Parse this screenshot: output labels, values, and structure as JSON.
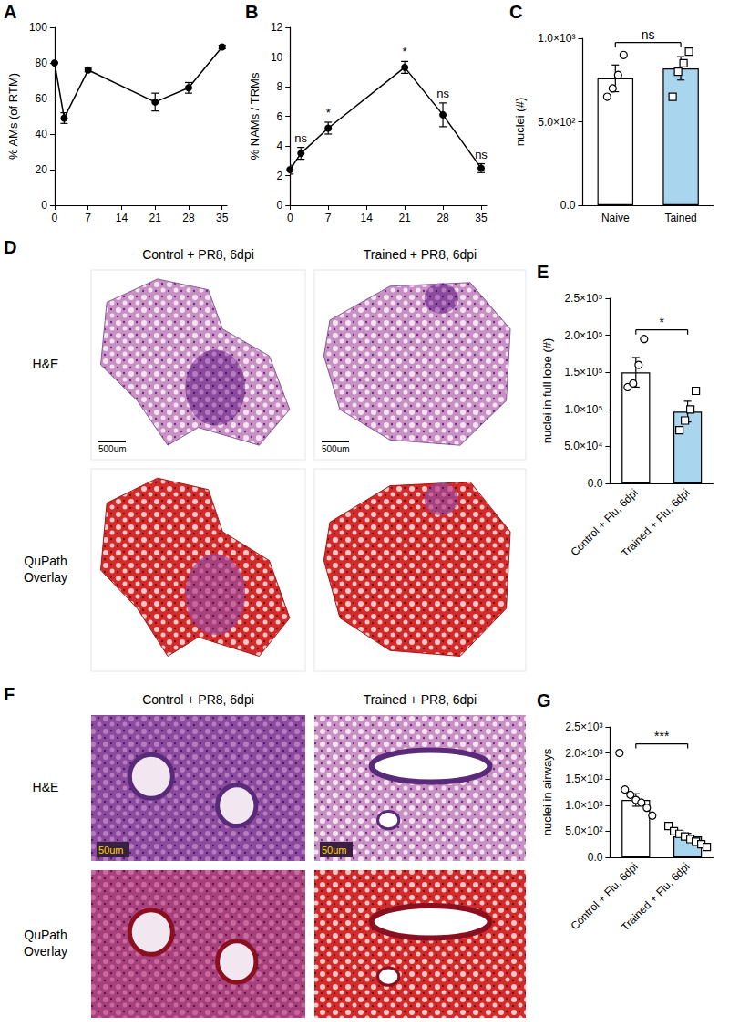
{
  "chart_data": [
    {
      "panel": "A",
      "type": "line",
      "ylabel": "% AMs (of RTM)",
      "x": [
        0,
        2,
        7,
        21,
        28,
        35
      ],
      "values": [
        80,
        49,
        76,
        58,
        66,
        89
      ],
      "errors": [
        0,
        3,
        1,
        5,
        3,
        1
      ],
      "xlim": [
        0,
        36
      ],
      "xticks": [
        0,
        7,
        14,
        21,
        28,
        35
      ],
      "ylim": [
        0,
        100
      ],
      "yticks": [
        0,
        20,
        40,
        60,
        80,
        100
      ],
      "color": "#000000",
      "marker": "circle"
    },
    {
      "panel": "B",
      "type": "line",
      "ylabel": "% NAMs / TRMs",
      "x": [
        0,
        2,
        7,
        21,
        28,
        35
      ],
      "values": [
        2.4,
        3.5,
        5.2,
        9.3,
        6.1,
        2.5
      ],
      "errors": [
        0.3,
        0.4,
        0.4,
        0.4,
        0.8,
        0.3
      ],
      "xlim": [
        0,
        36
      ],
      "xticks": [
        0,
        7,
        14,
        21,
        28,
        35
      ],
      "ylim": [
        0,
        12
      ],
      "yticks": [
        0,
        2,
        4,
        6,
        8,
        10,
        12
      ],
      "color": "#000000",
      "marker": "circle",
      "annotations": [
        {
          "x": 2,
          "text": "ns"
        },
        {
          "x": 7,
          "text": "*"
        },
        {
          "x": 21,
          "text": "*"
        },
        {
          "x": 28,
          "text": "ns"
        },
        {
          "x": 35,
          "text": "ns"
        }
      ]
    },
    {
      "panel": "C",
      "type": "bar",
      "ylabel": "nuclei (#)",
      "categories": [
        "Naive",
        "Tained"
      ],
      "values": [
        760,
        820
      ],
      "errors": [
        80,
        70
      ],
      "points": [
        [
          650,
          700,
          780,
          900
        ],
        [
          650,
          800,
          850,
          920
        ]
      ],
      "colors": [
        "#ffffff",
        "#a9d5ef"
      ],
      "ylim": [
        0,
        1000
      ],
      "yticks": [
        {
          "value": 0,
          "label": "0.0"
        },
        {
          "value": 500,
          "label": "5.0×10²"
        },
        {
          "value": 1000,
          "label": "1.0×10³"
        }
      ],
      "annotations": [
        {
          "between": [
            "Naive",
            "Tained"
          ],
          "text": "ns"
        }
      ]
    },
    {
      "panel": "E",
      "type": "bar",
      "ylabel": "nuclei in full lobe (#)",
      "categories": [
        "Control + Flu, 6dpi",
        "Trained + Flu, 6dpi"
      ],
      "values": [
        150000,
        97000
      ],
      "errors": [
        20000,
        14000
      ],
      "points": [
        [
          130000,
          135000,
          160000,
          195000
        ],
        [
          72000,
          85000,
          100000,
          125000
        ]
      ],
      "colors": [
        "#ffffff",
        "#a9d5ef"
      ],
      "ylim": [
        0,
        250000
      ],
      "yticks": [
        {
          "value": 0,
          "label": "0.0"
        },
        {
          "value": 50000,
          "label": "5.0×10⁴"
        },
        {
          "value": 100000,
          "label": "1.0×10⁵"
        },
        {
          "value": 150000,
          "label": "1.5×10⁵"
        },
        {
          "value": 200000,
          "label": "2.0×10⁵"
        },
        {
          "value": 250000,
          "label": "2.5×10⁵"
        }
      ],
      "annotations": [
        {
          "between": [
            "Control + Flu, 6dpi",
            "Trained + Flu, 6dpi"
          ],
          "text": "*"
        }
      ]
    },
    {
      "panel": "G",
      "type": "bar",
      "ylabel": "nuclei in airways",
      "categories": [
        "Control + Flu, 6dpi",
        "Trained + Flu, 6dpi"
      ],
      "values": [
        1100,
        400
      ],
      "errors": [
        120,
        60
      ],
      "points": [
        [
          2000,
          1300,
          1200,
          1100,
          1050,
          950,
          800
        ],
        [
          600,
          500,
          450,
          400,
          350,
          300,
          250,
          200
        ]
      ],
      "colors": [
        "#ffffff",
        "#a9d5ef"
      ],
      "ylim": [
        0,
        2500
      ],
      "yticks": [
        {
          "value": 0,
          "label": "0.0"
        },
        {
          "value": 500,
          "label": "5.0×10²"
        },
        {
          "value": 1000,
          "label": "1.0×10³"
        },
        {
          "value": 1500,
          "label": "1.5×10³"
        },
        {
          "value": 2000,
          "label": "2.0×10³"
        },
        {
          "value": 2500,
          "label": "2.5×10³"
        }
      ],
      "annotations": [
        {
          "between": [
            "Control + Flu, 6dpi",
            "Trained + Flu, 6dpi"
          ],
          "text": "***"
        }
      ]
    }
  ],
  "image_panels": [
    {
      "panel": "D",
      "columns": [
        "Control + PR8, 6dpi",
        "Trained + PR8, 6dpi"
      ],
      "rows": [
        "H&E",
        "QuPath Overlay"
      ],
      "scale_bar": "500um"
    },
    {
      "panel": "F",
      "columns": [
        "Control + PR8, 6dpi",
        "Trained + PR8, 6dpi"
      ],
      "rows": [
        "H&E",
        "QuPath Overlay"
      ],
      "scale_bar": "50um"
    }
  ]
}
